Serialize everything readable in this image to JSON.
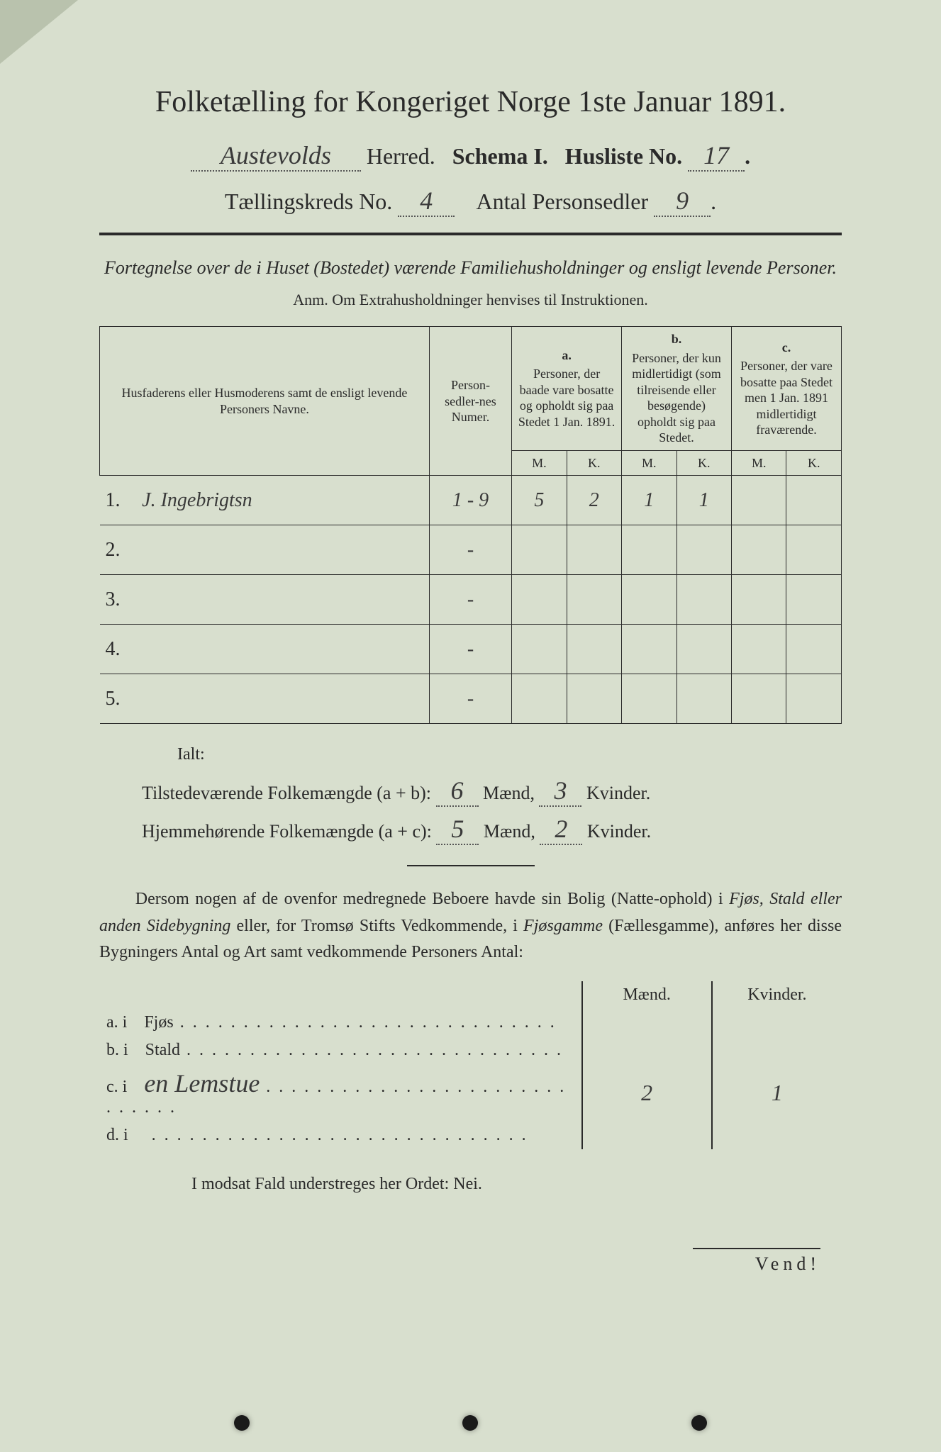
{
  "colors": {
    "paper": "#d8dfce",
    "ink": "#2a2a2a",
    "dogear": "#b9c2ad"
  },
  "typography": {
    "title_fontsize": 42,
    "header_fontsize": 32,
    "body_fontsize": 24,
    "handwritten_family": "Brush Script MT"
  },
  "title": "Folketælling for Kongeriget Norge 1ste Januar 1891.",
  "header": {
    "herred_value": "Austevolds",
    "herred_label": "Herred.",
    "schema_label": "Schema I.",
    "husliste_label": "Husliste No.",
    "husliste_no": "17",
    "kreds_label": "Tællingskreds No.",
    "kreds_no": "4",
    "antal_label": "Antal Personsedler",
    "antal_no": "9"
  },
  "subtitle": "Fortegnelse over de i Huset (Bostedet) værende Familiehusholdninger og ensligt levende Personer.",
  "anm": "Anm.  Om Extrahusholdninger henvises til Instruktionen.",
  "table": {
    "col_name": "Husfaderens eller Husmoderens samt de ensligt levende Personers Navne.",
    "col_pers": "Person-sedler-nes Numer.",
    "col_a_letter": "a.",
    "col_a": "Personer, der baade vare bosatte og opholdt sig paa Stedet 1 Jan. 1891.",
    "col_b_letter": "b.",
    "col_b": "Personer, der kun midlertidigt (som tilreisende eller besøgende) opholdt sig paa Stedet.",
    "col_c_letter": "c.",
    "col_c": "Personer, der vare bosatte paa Stedet men 1 Jan. 1891 midlertidigt fraværende.",
    "m": "M.",
    "k": "K.",
    "rows": [
      {
        "n": "1.",
        "name": "J. Ingebrigtsn",
        "pers": "1 - 9",
        "am": "5",
        "ak": "2",
        "bm": "1",
        "bk": "1",
        "cm": "",
        "ck": ""
      },
      {
        "n": "2.",
        "name": "",
        "pers": "-",
        "am": "",
        "ak": "",
        "bm": "",
        "bk": "",
        "cm": "",
        "ck": ""
      },
      {
        "n": "3.",
        "name": "",
        "pers": "-",
        "am": "",
        "ak": "",
        "bm": "",
        "bk": "",
        "cm": "",
        "ck": ""
      },
      {
        "n": "4.",
        "name": "",
        "pers": "-",
        "am": "",
        "ak": "",
        "bm": "",
        "bk": "",
        "cm": "",
        "ck": ""
      },
      {
        "n": "5.",
        "name": "",
        "pers": "-",
        "am": "",
        "ak": "",
        "bm": "",
        "bk": "",
        "cm": "",
        "ck": ""
      }
    ]
  },
  "totals": {
    "ialt_label": "Ialt:",
    "line1_label": "Tilstedeværende Folkemængde (a + b):",
    "line1_m": "6",
    "line1_k": "3",
    "line2_label": "Hjemmehørende Folkemængde (a + c):",
    "line2_m": "5",
    "line2_k": "2",
    "maend": "Mænd,",
    "kvinder": "Kvinder."
  },
  "paragraph": "Dersom nogen af de ovenfor medregnede Beboere havde sin Bolig (Natte-ophold) i Fjøs, Stald eller anden Sidebygning eller, for Tromsø Stifts Vedkommende, i Fjøsgamme (Fællesgamme), anføres her disse Bygningers Antal og Art samt vedkommende Personers Antal:",
  "sidebuild": {
    "head_m": "Mænd.",
    "head_k": "Kvinder.",
    "rows": [
      {
        "l": "a.  i",
        "name": "Fjøs",
        "hw": "",
        "m": "",
        "k": ""
      },
      {
        "l": "b.  i",
        "name": "Stald",
        "hw": "",
        "m": "",
        "k": ""
      },
      {
        "l": "c.  i",
        "name": "",
        "hw": "en Lemstue",
        "m": "2",
        "k": "1"
      },
      {
        "l": "d.  i",
        "name": "",
        "hw": "",
        "m": "",
        "k": ""
      }
    ]
  },
  "modsat": "I modsat Fald understreges her Ordet: Nei.",
  "vend": "Vend!"
}
